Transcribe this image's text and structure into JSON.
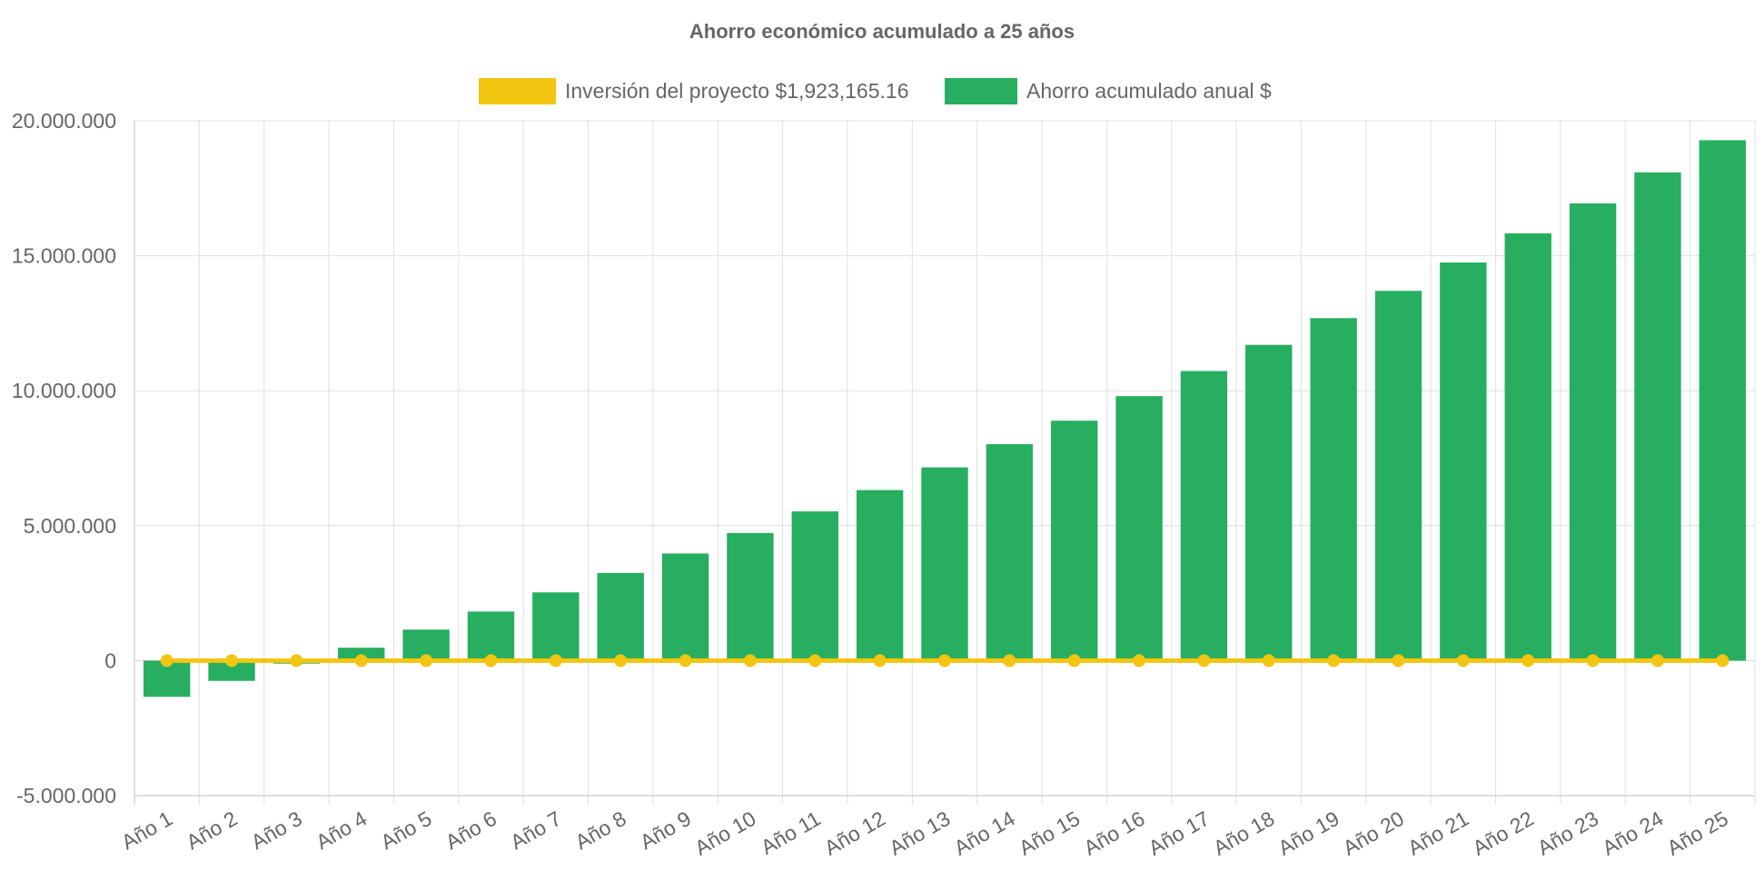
{
  "chart_data": {
    "type": "bar",
    "title": "Ahorro económico acumulado a 25 años",
    "xlabel": "",
    "ylabel": "",
    "categories": [
      "Año 1",
      "Año 2",
      "Año 3",
      "Año 4",
      "Año 5",
      "Año 6",
      "Año 7",
      "Año 8",
      "Año 9",
      "Año 10",
      "Año 11",
      "Año 12",
      "Año 13",
      "Año 14",
      "Año 15",
      "Año 16",
      "Año 17",
      "Año 18",
      "Año 19",
      "Año 20",
      "Año 21",
      "Año 22",
      "Año 23",
      "Año 24",
      "Año 25"
    ],
    "ylim": [
      -5000000,
      20000000
    ],
    "yticks": [
      -5000000,
      0,
      5000000,
      10000000,
      15000000,
      20000000
    ],
    "ytick_labels": [
      "-5.000.000",
      "0",
      "5.000.000",
      "10.000.000",
      "15.000.000",
      "20.000.000"
    ],
    "grid": true,
    "legend_position": "top-center",
    "series": [
      {
        "name": "Inversión del proyecto $1,923,165.16",
        "type": "line",
        "color": "#f2c511",
        "values": [
          0,
          0,
          0,
          0,
          0,
          0,
          0,
          0,
          0,
          0,
          0,
          0,
          0,
          0,
          0,
          0,
          0,
          0,
          0,
          0,
          0,
          0,
          0,
          0,
          0
        ]
      },
      {
        "name": "Ahorro acumulado anual $",
        "type": "bar",
        "color": "#27ae60",
        "values": [
          -1340000,
          -750000,
          -110000,
          480000,
          1150000,
          1820000,
          2530000,
          3250000,
          3970000,
          4730000,
          5530000,
          6320000,
          7160000,
          8020000,
          8890000,
          9800000,
          10730000,
          11700000,
          12690000,
          13700000,
          14750000,
          15830000,
          16940000,
          18090000,
          19280000
        ]
      }
    ]
  }
}
